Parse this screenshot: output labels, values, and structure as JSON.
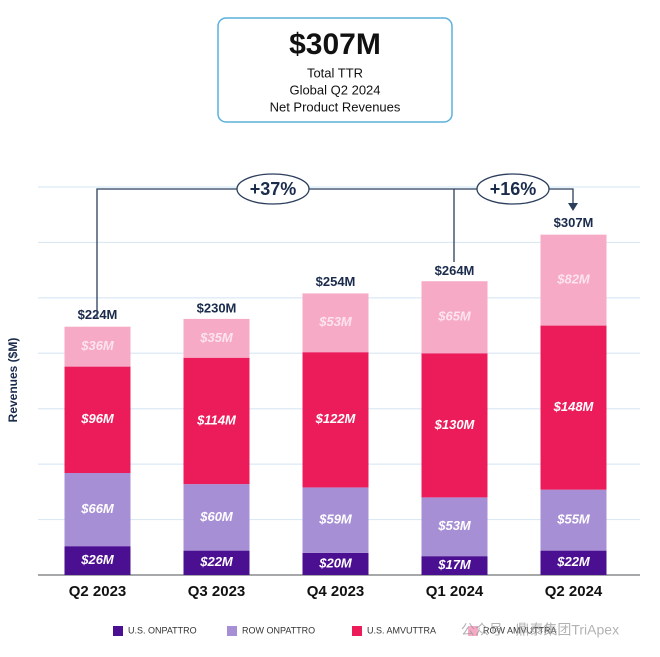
{
  "chart_data": {
    "type": "stacked_bar",
    "title": "$307M",
    "subtitle": [
      "Total TTR",
      "Global Q2 2024",
      "Net Product Revenues"
    ],
    "y_label": "Revenues ($M)",
    "annotations": [
      "+37%",
      "+16%"
    ],
    "watermark": "公众号 · 鼎泰集团TriApex",
    "categories": [
      "Q2 2023",
      "Q3 2023",
      "Q4 2023",
      "Q1 2024",
      "Q2 2024"
    ],
    "series": [
      {
        "name": "U.S. ONPATTRO",
        "color": "#4b0f91",
        "values": [
          26,
          22,
          20,
          17,
          22
        ],
        "value_labels": [
          "$26M",
          "$22M",
          "$20M",
          "$17M",
          "$22M"
        ]
      },
      {
        "name": "ROW ONPATTRO",
        "color": "#a78fd5",
        "values": [
          66,
          60,
          59,
          53,
          55
        ],
        "value_labels": [
          "$66M",
          "$60M",
          "$59M",
          "$53M",
          "$55M"
        ]
      },
      {
        "name": "U.S. AMVUTTRA",
        "color": "#ec1c5b",
        "values": [
          96,
          114,
          122,
          130,
          148
        ],
        "value_labels": [
          "$96M",
          "$114M",
          "$122M",
          "$130M",
          "$148M"
        ]
      },
      {
        "name": "ROW AMVUTTRA",
        "color": "#f6aac6",
        "values": [
          36,
          35,
          53,
          65,
          82
        ],
        "value_labels": [
          "$36M",
          "$35M",
          "$53M",
          "$65M",
          "$82M"
        ]
      }
    ],
    "totals": {
      "values": [
        224,
        230,
        254,
        264,
        307
      ],
      "value_labels": [
        "$224M",
        "$230M",
        "$254M",
        "$264M",
        "$307M"
      ]
    },
    "ylim": [
      0,
      350
    ],
    "yticks": [
      0,
      50,
      100,
      150,
      200,
      250,
      300,
      350
    ],
    "grid": true
  }
}
